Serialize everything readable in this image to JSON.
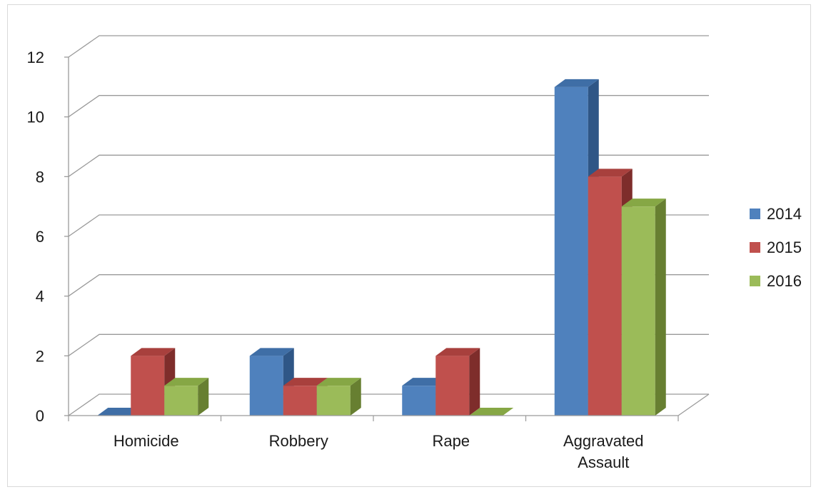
{
  "chart_data": {
    "type": "bar",
    "categories": [
      "Homicide",
      "Robbery",
      "Rape",
      "Aggravated Assault"
    ],
    "category_lines": [
      [
        "Homicide"
      ],
      [
        "Robbery"
      ],
      [
        "Rape"
      ],
      [
        "Aggravated",
        "Assault"
      ]
    ],
    "series": [
      {
        "name": "2014",
        "values": [
          0,
          2,
          1,
          11
        ]
      },
      {
        "name": "2015",
        "values": [
          2,
          1,
          2,
          8
        ]
      },
      {
        "name": "2016",
        "values": [
          1,
          1,
          0,
          7
        ]
      }
    ],
    "ylim": [
      0,
      12
    ],
    "yticks": [
      0,
      2,
      4,
      6,
      8,
      10,
      12
    ],
    "grid": true,
    "legend_position": "right",
    "style": "3d-clustered-column"
  },
  "colors": {
    "series": [
      {
        "front": "#4f81bd",
        "top": "#3f6ea6",
        "side": "#2f5686"
      },
      {
        "front": "#c0504d",
        "top": "#a8403d",
        "side": "#7e2d2b"
      },
      {
        "front": "#9bbb59",
        "top": "#86a745",
        "side": "#677f31"
      }
    ],
    "grid": "#9a9a9a",
    "text": "#1a1a1a"
  }
}
